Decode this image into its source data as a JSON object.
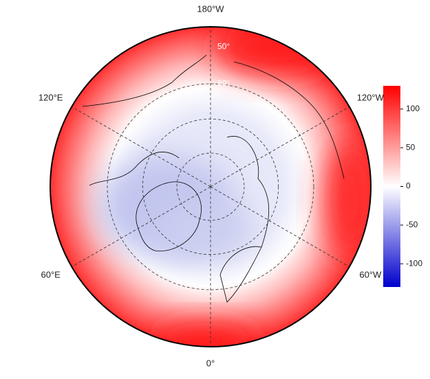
{
  "map": {
    "meridian_labels": [
      {
        "text": "180°W",
        "angle": 180
      },
      {
        "text": "120°W",
        "angle": 240
      },
      {
        "text": "120°E",
        "angle": 120
      },
      {
        "text": "60°W",
        "angle": 300
      },
      {
        "text": "60°E",
        "angle": 60
      },
      {
        "text": "0°",
        "angle": 0
      }
    ],
    "parallel_labels": [
      {
        "text": "50°",
        "lat": 50
      },
      {
        "text": "60°",
        "lat": 60
      }
    ],
    "parallels": [
      60,
      70,
      80
    ],
    "colorbar": {
      "range": [
        -130,
        130
      ],
      "ticks": [
        -100,
        -50,
        0,
        50,
        100
      ],
      "colors": [
        "#0000cc",
        "#ffffff",
        "#ff0000"
      ]
    }
  }
}
